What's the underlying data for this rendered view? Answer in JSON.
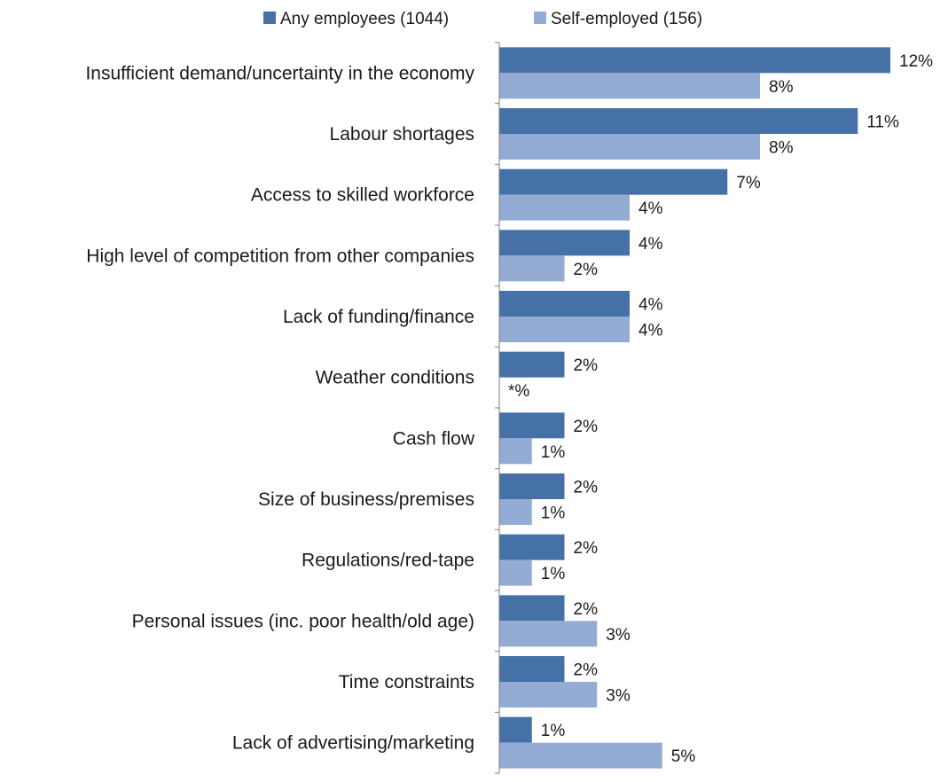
{
  "chart_data": {
    "type": "bar",
    "orientation": "horizontal",
    "categories": [
      "Insufficient demand/uncertainty in the economy",
      "Labour shortages",
      "Access to skilled workforce",
      "High level of competition from other companies",
      "Lack of funding/finance",
      "Weather conditions",
      "Cash flow",
      "Size of business/premises",
      "Regulations/red-tape",
      "Personal issues (inc. poor health/old age)",
      "Time constraints",
      "Lack of advertising/marketing"
    ],
    "series": [
      {
        "name": "Any employees (1044)",
        "color": "#4571a7",
        "values": [
          12,
          11,
          7,
          4,
          4,
          2,
          2,
          2,
          2,
          2,
          2,
          1
        ],
        "labels": [
          "12%",
          "11%",
          "7%",
          "4%",
          "4%",
          "2%",
          "2%",
          "2%",
          "2%",
          "2%",
          "2%",
          "1%"
        ]
      },
      {
        "name": "Self-employed (156)",
        "color": "#94abd4",
        "values": [
          8,
          8,
          4,
          2,
          4,
          0,
          1,
          1,
          1,
          3,
          3,
          5
        ],
        "labels": [
          "8%",
          "8%",
          "4%",
          "2%",
          "4%",
          "*%",
          "1%",
          "1%",
          "1%",
          "3%",
          "3%",
          "5%"
        ]
      }
    ],
    "xlim": [
      0,
      12
    ],
    "grid": false,
    "legend": "top"
  }
}
